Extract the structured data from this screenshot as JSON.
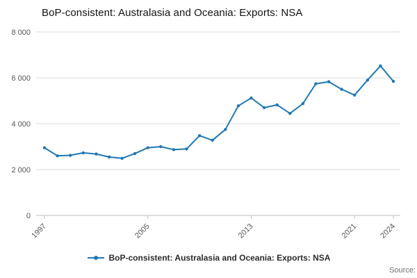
{
  "title": "BoP-consistent: Australasia and Oceania: Exports: NSA",
  "legend": {
    "label": "BoP-consistent: Australasia and Oceania: Exports: NSA"
  },
  "source": "Source:",
  "colors": {
    "line": "#1f77b4",
    "grid": "#d9d9d9",
    "axis": "#bdbdbd",
    "tick_text": "#555555"
  },
  "chart_data": {
    "type": "line",
    "title": "BoP-consistent: Australasia and Oceania: Exports: NSA",
    "xlabel": "",
    "ylabel": "",
    "x": [
      1997,
      1998,
      1999,
      2000,
      2001,
      2002,
      2003,
      2004,
      2005,
      2006,
      2007,
      2008,
      2009,
      2010,
      2011,
      2012,
      2013,
      2014,
      2015,
      2016,
      2017,
      2018,
      2019,
      2020,
      2021,
      2022,
      2023,
      2024
    ],
    "series": [
      {
        "name": "BoP-consistent: Australasia and Oceania: Exports: NSA",
        "values": [
          2950,
          2600,
          2620,
          2730,
          2680,
          2550,
          2490,
          2700,
          2950,
          3000,
          2870,
          2900,
          3480,
          3280,
          3750,
          4780,
          5120,
          4700,
          4820,
          4450,
          4880,
          5740,
          5830,
          5500,
          5250,
          5900,
          6520,
          5850
        ]
      }
    ],
    "ylim": [
      0,
      8000
    ],
    "xlim": [
      1997,
      2024
    ],
    "yticks": {
      "values": [
        0,
        2000,
        4000,
        6000,
        8000
      ],
      "labels": [
        "0",
        "2 000",
        "4 000",
        "6 000",
        "8 000"
      ]
    },
    "xticks": {
      "values": [
        1997,
        2005,
        2013,
        2021,
        2024
      ],
      "labels": [
        "1997",
        "2005",
        "2013",
        "2021",
        "2024"
      ]
    },
    "grid": "horizontal",
    "legend_position": "bottom",
    "marker": "circle"
  }
}
